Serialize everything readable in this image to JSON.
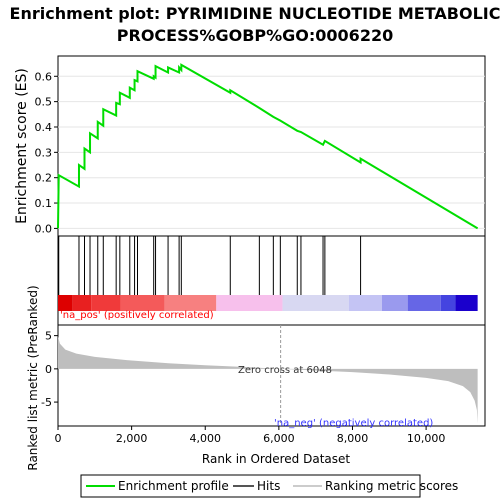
{
  "chart_data": {
    "type": "line",
    "title_line1": "Enrichment plot: PYRIMIDINE NUCLEOTIDE METABOLIC",
    "title_line2": "PROCESS%GOBP%GO:0006220",
    "es_ylabel": "Enrichment score (ES)",
    "metric_ylabel": "Ranked list metric (PreRanked)",
    "xlabel": "Rank in Ordered Dataset",
    "x_ticks": [
      "0",
      "2,000",
      "4,000",
      "6,000",
      "8,000",
      "10,000"
    ],
    "x_tick_values": [
      0,
      2000,
      4000,
      6000,
      8000,
      10000
    ],
    "es_ticks": [
      "0.0",
      "0.1",
      "0.2",
      "0.3",
      "0.4",
      "0.5",
      "0.6"
    ],
    "es_tick_values": [
      0.0,
      0.1,
      0.2,
      0.3,
      0.4,
      0.5,
      0.6
    ],
    "metric_ticks": [
      "5",
      "0",
      "-5"
    ],
    "metric_tick_values": [
      5,
      0,
      -5
    ],
    "xlim": [
      0,
      11600
    ],
    "es_ylim": [
      -0.03,
      0.68
    ],
    "metric_ylim": [
      -8.6,
      6.6
    ],
    "n_genes": 11400,
    "zero_cross_label": "Zero cross at 6048",
    "zero_cross_rank": 6048,
    "pos_label": "'na_pos' (positively correlated)",
    "neg_label": "'na_neg' (negatively correlated)",
    "colors": {
      "es_line": "#00dd00",
      "hits": "#000000",
      "pos_annotation": "#ff0000",
      "neg_annotation": "#3333ff",
      "metric_fill": "#bebebe"
    },
    "hits": [
      20,
      570,
      720,
      870,
      1080,
      1230,
      1580,
      1680,
      1950,
      2080,
      2160,
      2600,
      2650,
      2990,
      3290,
      3350,
      4680,
      5470,
      5850,
      6040,
      6500,
      6600,
      7200,
      7250,
      8220
    ],
    "es_curve": [
      [
        0,
        0.0
      ],
      [
        20,
        0.21
      ],
      [
        570,
        0.165
      ],
      [
        570,
        0.25
      ],
      [
        720,
        0.235
      ],
      [
        720,
        0.315
      ],
      [
        870,
        0.3
      ],
      [
        870,
        0.375
      ],
      [
        1080,
        0.355
      ],
      [
        1080,
        0.42
      ],
      [
        1230,
        0.405
      ],
      [
        1230,
        0.47
      ],
      [
        1580,
        0.445
      ],
      [
        1580,
        0.495
      ],
      [
        1680,
        0.49
      ],
      [
        1680,
        0.535
      ],
      [
        1950,
        0.515
      ],
      [
        1950,
        0.555
      ],
      [
        2080,
        0.545
      ],
      [
        2080,
        0.585
      ],
      [
        2160,
        0.58
      ],
      [
        2160,
        0.62
      ],
      [
        2600,
        0.59
      ],
      [
        2600,
        0.6
      ],
      [
        2650,
        0.595
      ],
      [
        2650,
        0.64
      ],
      [
        2990,
        0.615
      ],
      [
        2990,
        0.635
      ],
      [
        3290,
        0.615
      ],
      [
        3290,
        0.635
      ],
      [
        3350,
        0.625
      ],
      [
        3350,
        0.645
      ],
      [
        4680,
        0.535
      ],
      [
        4680,
        0.545
      ],
      [
        5470,
        0.475
      ],
      [
        5850,
        0.44
      ],
      [
        6040,
        0.425
      ],
      [
        6500,
        0.385
      ],
      [
        6600,
        0.38
      ],
      [
        7200,
        0.33
      ],
      [
        7250,
        0.345
      ],
      [
        8220,
        0.26
      ],
      [
        8220,
        0.275
      ],
      [
        11400,
        0.0
      ]
    ],
    "metric_curve": [
      [
        0,
        4.9
      ],
      [
        50,
        3.8
      ],
      [
        200,
        2.9
      ],
      [
        500,
        2.3
      ],
      [
        1000,
        1.8
      ],
      [
        2000,
        1.25
      ],
      [
        3000,
        0.85
      ],
      [
        4000,
        0.55
      ],
      [
        5000,
        0.3
      ],
      [
        6048,
        0.0
      ],
      [
        7000,
        -0.25
      ],
      [
        8000,
        -0.5
      ],
      [
        9000,
        -0.85
      ],
      [
        10000,
        -1.35
      ],
      [
        10600,
        -1.85
      ],
      [
        11000,
        -2.6
      ],
      [
        11200,
        -3.5
      ],
      [
        11320,
        -4.8
      ],
      [
        11380,
        -6.2
      ],
      [
        11400,
        -8.2
      ]
    ],
    "color_bar": [
      [
        0,
        400,
        "#dd0000"
      ],
      [
        400,
        900,
        "#e82020"
      ],
      [
        900,
        1700,
        "#f03a3a"
      ],
      [
        1700,
        2900,
        "#f45a5a"
      ],
      [
        2900,
        4300,
        "#f78080"
      ],
      [
        4300,
        6100,
        "#f7c0ec"
      ],
      [
        6100,
        7900,
        "#d8d8f2"
      ],
      [
        7900,
        8800,
        "#c4c4f4"
      ],
      [
        8800,
        9500,
        "#9a9aee"
      ],
      [
        9500,
        10400,
        "#6666e6"
      ],
      [
        10400,
        10800,
        "#4444e0"
      ],
      [
        10800,
        11400,
        "#1a00cc"
      ]
    ],
    "legend": {
      "enrichment": "Enrichment profile",
      "hits": "Hits",
      "ranking": "Ranking metric scores"
    }
  }
}
